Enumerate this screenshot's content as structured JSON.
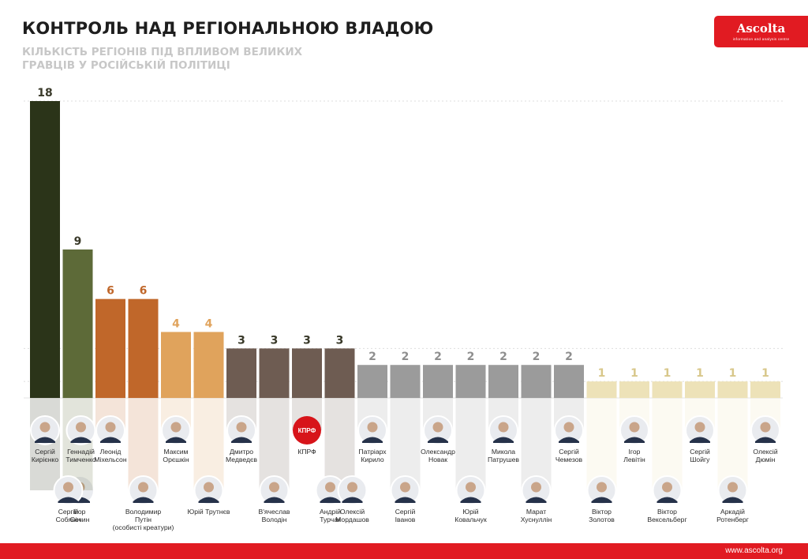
{
  "header": {
    "title": "КОНТРОЛЬ НАД РЕГІОНАЛЬНОЮ ВЛАДОЮ",
    "subtitle": "КІЛЬКІСТЬ РЕГІОНІВ ПІД ВПЛИВОМ ВЕЛИКИХ ГРАВЦІВ У РОСІЙСЬКІЙ ПОЛІТИЦІ"
  },
  "logo": {
    "name": "Ascolta",
    "tagline": "information and analysis centre"
  },
  "footer": {
    "url": "www.ascolta.org"
  },
  "colors": {
    "tier18": "#2b3419",
    "tier9": "#5d6a38",
    "tier6": "#c0672a",
    "tier4": "#e0a35c",
    "tier3": "#6e5c52",
    "tier2": "#9b9b9b",
    "tier1": "#ede2b8",
    "grid": "#dddddd",
    "accent": "#e11b22"
  },
  "chart_data": {
    "type": "bar",
    "title": "КОНТРОЛЬ НАД РЕГІОНАЛЬНОЮ ВЛАДОЮ",
    "ylim": [
      0,
      18
    ],
    "grid": true,
    "values": [
      18,
      9,
      6,
      6,
      4,
      4,
      3,
      3,
      3,
      3,
      2,
      2,
      2,
      2,
      2,
      2,
      2,
      1,
      1,
      1,
      1,
      1,
      1
    ],
    "bars": [
      {
        "value": 18,
        "tier": "tier18",
        "people": [
          {
            "name": [
              "Сергій",
              "Кирієнко"
            ],
            "row": "top"
          },
          {
            "name": [
              "Ігор",
              "Сечин"
            ],
            "row": "bottom"
          }
        ]
      },
      {
        "value": 9,
        "tier": "tier9",
        "people": [
          {
            "name": [
              "Сергій",
              "Собянін"
            ],
            "row": "bottom"
          },
          {
            "name": [
              "Геннадій",
              "Тимченко"
            ],
            "row": "top"
          }
        ]
      },
      {
        "value": 6,
        "tier": "tier6",
        "people": [
          {
            "name": [
              "Леонід",
              "Міхельсон"
            ],
            "row": "top"
          }
        ]
      },
      {
        "value": 6,
        "tier": "tier6",
        "people": [
          {
            "name": [
              "Володимир",
              "Путін",
              "(особисті креатури)"
            ],
            "row": "bottom"
          }
        ]
      },
      {
        "value": 4,
        "tier": "tier4",
        "people": [
          {
            "name": [
              "Максим",
              "Орєшкін"
            ],
            "row": "top"
          }
        ]
      },
      {
        "value": 4,
        "tier": "tier4",
        "people": [
          {
            "name": [
              "Юрій Трутнєв"
            ],
            "row": "bottom"
          }
        ]
      },
      {
        "value": 3,
        "tier": "tier3",
        "people": [
          {
            "name": [
              "Дмитро",
              "Медведєв"
            ],
            "row": "top"
          }
        ]
      },
      {
        "value": 3,
        "tier": "tier3",
        "people": [
          {
            "name": [
              "В'ячеслав",
              "Володін"
            ],
            "row": "bottom"
          }
        ]
      },
      {
        "value": 3,
        "tier": "tier3",
        "people": [
          {
            "name": [
              "КПРФ"
            ],
            "row": "top",
            "logo": "КПРФ"
          }
        ]
      },
      {
        "value": 3,
        "tier": "tier3",
        "people": [
          {
            "name": [
              "Андрій",
              "Турчак"
            ],
            "row": "bottom"
          },
          {
            "name": [
              "Олексій",
              "Мордашов"
            ],
            "row": "bottom"
          }
        ]
      },
      {
        "value": 2,
        "tier": "tier2",
        "people": [
          {
            "name": [
              "Патріарх",
              "Кирило"
            ],
            "row": "top"
          }
        ]
      },
      {
        "value": 2,
        "tier": "tier2",
        "people": [
          {
            "name": [
              "Сергій",
              "Іванов"
            ],
            "row": "bottom"
          }
        ]
      },
      {
        "value": 2,
        "tier": "tier2",
        "people": [
          {
            "name": [
              "Олександр",
              "Новак"
            ],
            "row": "top"
          }
        ]
      },
      {
        "value": 2,
        "tier": "tier2",
        "people": [
          {
            "name": [
              "Юрій",
              "Ковальчук"
            ],
            "row": "bottom"
          }
        ]
      },
      {
        "value": 2,
        "tier": "tier2",
        "people": [
          {
            "name": [
              "Микола",
              "Патрушев"
            ],
            "row": "top"
          }
        ]
      },
      {
        "value": 2,
        "tier": "tier2",
        "people": [
          {
            "name": [
              "Марат",
              "Хуснуллін"
            ],
            "row": "bottom"
          }
        ]
      },
      {
        "value": 2,
        "tier": "tier2",
        "people": [
          {
            "name": [
              "Сергій",
              "Чемезов"
            ],
            "row": "top"
          }
        ]
      },
      {
        "value": 1,
        "tier": "tier1",
        "people": [
          {
            "name": [
              "Віктор",
              "Золотов"
            ],
            "row": "bottom"
          }
        ]
      },
      {
        "value": 1,
        "tier": "tier1",
        "people": [
          {
            "name": [
              "Ігор",
              "Левітін"
            ],
            "row": "top"
          }
        ]
      },
      {
        "value": 1,
        "tier": "tier1",
        "people": [
          {
            "name": [
              "Віктор",
              "Вексельберг"
            ],
            "row": "bottom"
          }
        ]
      },
      {
        "value": 1,
        "tier": "tier1",
        "people": [
          {
            "name": [
              "Сергій",
              "Шойгу"
            ],
            "row": "top"
          }
        ]
      },
      {
        "value": 1,
        "tier": "tier1",
        "people": [
          {
            "name": [
              "Аркадій",
              "Ротенберг"
            ],
            "row": "bottom"
          }
        ]
      },
      {
        "value": 1,
        "tier": "tier1",
        "people": [
          {
            "name": [
              "Олексій",
              "Дюмін"
            ],
            "row": "top"
          }
        ]
      }
    ]
  }
}
